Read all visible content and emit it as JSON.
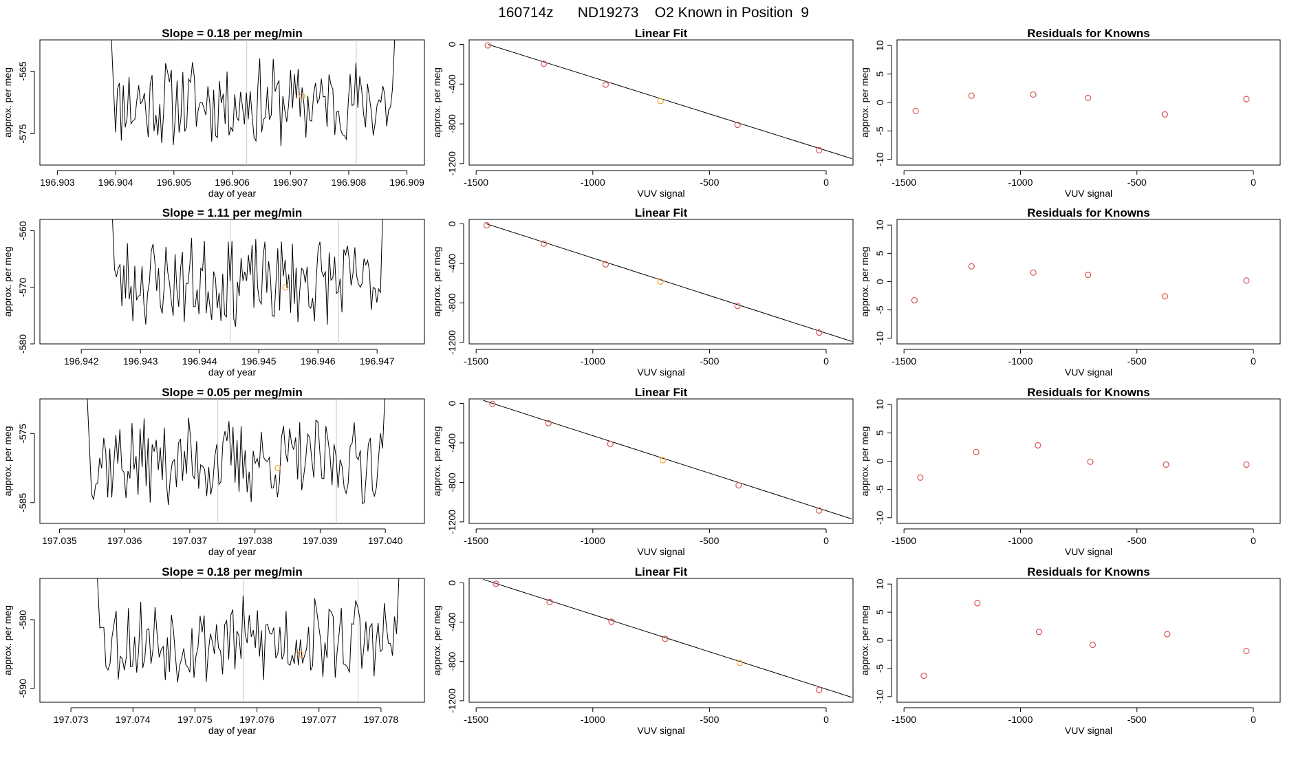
{
  "main_title": "160714z      ND19273    O2 Known in Position  9",
  "colors": {
    "line": "#000000",
    "point": "#d9534f",
    "highlight": "#f0a030",
    "vline": "#c8c8c8",
    "axis": "#000000"
  },
  "chart_data": [
    {
      "type": "line",
      "panel": "timeseries",
      "row": 0,
      "title": "Slope =  0.18  per meg/min",
      "xlabel": "day of year",
      "ylabel": "approx. per meg",
      "xlim": [
        196.9027,
        196.9093
      ],
      "ylim": [
        -580,
        -560
      ],
      "xticks": [
        196.903,
        196.904,
        196.905,
        196.906,
        196.907,
        196.908,
        196.909
      ],
      "xticklabels": [
        "196.903",
        "196.904",
        "196.905",
        "196.906",
        "196.907",
        "196.908",
        "196.909"
      ],
      "yticks": [
        -565,
        -575
      ],
      "yticklabels": [
        "-565",
        "-575"
      ],
      "x_start": 196.9039,
      "x_end": 196.90885,
      "vlines": [
        196.90625,
        196.90813
      ],
      "highlight": {
        "x": 196.9072,
        "y": -569
      },
      "seed": 11
    },
    {
      "type": "line",
      "panel": "timeseries",
      "row": 1,
      "title": "Slope =  1.11  per meg/min",
      "xlabel": "day of year",
      "ylabel": "approx. per meg",
      "xlim": [
        196.9413,
        196.9478
      ],
      "ylim": [
        -580,
        -558
      ],
      "xticks": [
        196.942,
        196.943,
        196.944,
        196.945,
        196.946,
        196.947
      ],
      "xticklabels": [
        "196.942",
        "196.943",
        "196.944",
        "196.945",
        "196.946",
        "196.947"
      ],
      "yticks": [
        -560,
        -570,
        -580
      ],
      "yticklabels": [
        "-560",
        "-570",
        "-580"
      ],
      "x_start": 196.9425,
      "x_end": 196.94715,
      "vlines": [
        196.94452,
        196.94635
      ],
      "highlight": {
        "x": 196.94545,
        "y": -570
      },
      "seed": 23
    },
    {
      "type": "line",
      "panel": "timeseries",
      "row": 2,
      "title": "Slope =  0.05  per meg/min",
      "xlabel": "day of year",
      "ylabel": "approx. per meg",
      "xlim": [
        197.0347,
        197.0406
      ],
      "ylim": [
        -588,
        -570
      ],
      "xticks": [
        197.035,
        197.036,
        197.037,
        197.038,
        197.039,
        197.04
      ],
      "xticklabels": [
        "197.035",
        "197.036",
        "197.037",
        "197.038",
        "197.039",
        "197.040"
      ],
      "yticks": [
        -575,
        -585
      ],
      "yticklabels": [
        "-575",
        "-585"
      ],
      "x_start": 197.0354,
      "x_end": 197.04005,
      "vlines": [
        197.03743,
        197.03925
      ],
      "highlight": {
        "x": 197.03835,
        "y": -580
      },
      "seed": 37
    },
    {
      "type": "line",
      "panel": "timeseries",
      "row": 3,
      "title": "Slope =  0.18  per meg/min",
      "xlabel": "day of year",
      "ylabel": "approx. per meg",
      "xlim": [
        197.0725,
        197.0787
      ],
      "ylim": [
        -592,
        -574
      ],
      "xticks": [
        197.073,
        197.074,
        197.075,
        197.076,
        197.077,
        197.078
      ],
      "xticklabels": [
        "197.073",
        "197.074",
        "197.075",
        "197.076",
        "197.077",
        "197.078"
      ],
      "yticks": [
        -580,
        -590
      ],
      "yticklabels": [
        "-580",
        "-590"
      ],
      "x_start": 197.0734,
      "x_end": 197.07835,
      "vlines": [
        197.07578,
        197.07763
      ],
      "highlight": {
        "x": 197.0767,
        "y": -585
      },
      "seed": 53
    },
    {
      "type": "scatter",
      "panel": "fit",
      "row": 0,
      "title": "Linear Fit",
      "xlabel": "VUV signal",
      "ylabel": "approx. per meg",
      "xlim": [
        -1530,
        115
      ],
      "ylim": [
        -1215,
        45
      ],
      "xticks": [
        -1500,
        -1000,
        -500,
        0
      ],
      "xticklabels": [
        "-1500",
        "-1000",
        "-500",
        "0"
      ],
      "yticks": [
        0,
        -400,
        -800,
        -1200
      ],
      "yticklabels": [
        "0",
        "-400",
        "-800",
        "-1200"
      ],
      "x": [
        -1450,
        -1210,
        -945,
        -710,
        -380,
        -30
      ],
      "y": [
        -10,
        -195,
        -405,
        -570,
        -810,
        -1065
      ],
      "highlight_index": 3,
      "fit_line": {
        "x": [
          -1450,
          110
        ],
        "y": [
          0,
          -1150
        ]
      }
    },
    {
      "type": "scatter",
      "panel": "fit",
      "row": 1,
      "title": "Linear Fit",
      "xlabel": "VUV signal",
      "ylabel": "approx. per meg",
      "xlim": [
        -1530,
        115
      ],
      "ylim": [
        -1215,
        45
      ],
      "xticks": [
        -1500,
        -1000,
        -500,
        0
      ],
      "xticklabels": [
        "-1500",
        "-1000",
        "-500",
        "0"
      ],
      "yticks": [
        0,
        -400,
        -800,
        -1200
      ],
      "yticklabels": [
        "0",
        "-400",
        "-800",
        "-1200"
      ],
      "x": [
        -1455,
        -1210,
        -945,
        -710,
        -380,
        -30
      ],
      "y": [
        -15,
        -200,
        -410,
        -585,
        -830,
        -1100
      ],
      "highlight_index": 3,
      "fit_line": {
        "x": [
          -1455,
          110
        ],
        "y": [
          0,
          -1190
        ]
      }
    },
    {
      "type": "scatter",
      "panel": "fit",
      "row": 2,
      "title": "Linear Fit",
      "xlabel": "VUV signal",
      "ylabel": "approx. per meg",
      "xlim": [
        -1530,
        115
      ],
      "ylim": [
        -1215,
        45
      ],
      "xticks": [
        -1500,
        -1000,
        -500,
        0
      ],
      "xticklabels": [
        "-1500",
        "-1000",
        "-500",
        "0"
      ],
      "yticks": [
        0,
        -400,
        -800,
        -1200
      ],
      "yticklabels": [
        "0",
        "-400",
        "-800",
        "-1200"
      ],
      "x": [
        -1430,
        -1190,
        -925,
        -700,
        -375,
        -30
      ],
      "y": [
        -5,
        -200,
        -410,
        -575,
        -830,
        -1085
      ],
      "highlight_index": 3,
      "fit_line": {
        "x": [
          -1470,
          110
        ],
        "y": [
          30,
          -1170
        ]
      }
    },
    {
      "type": "scatter",
      "panel": "fit",
      "row": 3,
      "title": "Linear Fit",
      "xlabel": "VUV signal",
      "ylabel": "approx. per meg",
      "xlim": [
        -1530,
        115
      ],
      "ylim": [
        -1215,
        45
      ],
      "xticks": [
        -1500,
        -1000,
        -500,
        0
      ],
      "xticklabels": [
        "-1500",
        "-1000",
        "-500",
        "0"
      ],
      "yticks": [
        0,
        -400,
        -800,
        -1200
      ],
      "yticklabels": [
        "0",
        "-400",
        "-800",
        "-1200"
      ],
      "x": [
        -1415,
        -1185,
        -920,
        -690,
        -370,
        -30
      ],
      "y": [
        -10,
        -195,
        -395,
        -570,
        -815,
        -1090
      ],
      "highlight_index": 4,
      "fit_line": {
        "x": [
          -1470,
          110
        ],
        "y": [
          35,
          -1165
        ]
      }
    },
    {
      "type": "scatter",
      "panel": "residuals",
      "row": 0,
      "title": "Residuals for Knowns",
      "xlabel": "VUV signal",
      "ylabel": "approx. per meg",
      "xlim": [
        -1530,
        115
      ],
      "ylim": [
        -11,
        11
      ],
      "xticks": [
        -1500,
        -1000,
        -500,
        0
      ],
      "xticklabels": [
        "-1500",
        "-1000",
        "-500",
        "0"
      ],
      "yticks": [
        10,
        5,
        0,
        -5,
        -10
      ],
      "yticklabels": [
        "10",
        "5",
        "0",
        "-5",
        "-10"
      ],
      "x": [
        -1450,
        -1210,
        -945,
        -710,
        -380,
        -30
      ],
      "y": [
        -1.5,
        1.2,
        1.4,
        0.8,
        -2.1,
        0.6
      ]
    },
    {
      "type": "scatter",
      "panel": "residuals",
      "row": 1,
      "title": "Residuals for Knowns",
      "xlabel": "VUV signal",
      "ylabel": "approx. per meg",
      "xlim": [
        -1530,
        115
      ],
      "ylim": [
        -11,
        11
      ],
      "xticks": [
        -1500,
        -1000,
        -500,
        0
      ],
      "xticklabels": [
        "-1500",
        "-1000",
        "-500",
        "0"
      ],
      "yticks": [
        10,
        5,
        0,
        -5,
        -10
      ],
      "yticklabels": [
        "10",
        "5",
        "0",
        "-5",
        "-10"
      ],
      "x": [
        -1455,
        -1210,
        -945,
        -710,
        -380,
        -30
      ],
      "y": [
        -3.3,
        2.7,
        1.6,
        1.2,
        -2.6,
        0.2
      ]
    },
    {
      "type": "scatter",
      "panel": "residuals",
      "row": 2,
      "title": "Residuals for Knowns",
      "xlabel": "VUV signal",
      "ylabel": "approx. per meg",
      "xlim": [
        -1530,
        115
      ],
      "ylim": [
        -11,
        11
      ],
      "xticks": [
        -1500,
        -1000,
        -500,
        0
      ],
      "xticklabels": [
        "-1500",
        "-1000",
        "-500",
        "0"
      ],
      "yticks": [
        10,
        5,
        0,
        -5,
        -10
      ],
      "yticklabels": [
        "10",
        "5",
        "0",
        "-5",
        "-10"
      ],
      "x": [
        -1430,
        -1190,
        -925,
        -700,
        -375,
        -30
      ],
      "y": [
        -2.9,
        1.6,
        2.8,
        -0.1,
        -0.6,
        -0.6
      ]
    },
    {
      "type": "scatter",
      "panel": "residuals",
      "row": 3,
      "title": "Residuals for Knowns",
      "xlabel": "VUV signal",
      "ylabel": "approx. per meg",
      "xlim": [
        -1530,
        115
      ],
      "ylim": [
        -11,
        11
      ],
      "xticks": [
        -1500,
        -1000,
        -500,
        0
      ],
      "xticklabels": [
        "-1500",
        "-1000",
        "-500",
        "0"
      ],
      "yticks": [
        10,
        5,
        0,
        -5,
        -10
      ],
      "yticklabels": [
        "10",
        "5",
        "0",
        "-5",
        "-10"
      ],
      "x": [
        -1415,
        -1185,
        -920,
        -690,
        -370,
        -30
      ],
      "y": [
        -6.3,
        6.6,
        1.5,
        -0.8,
        1.1,
        -1.9
      ]
    }
  ]
}
